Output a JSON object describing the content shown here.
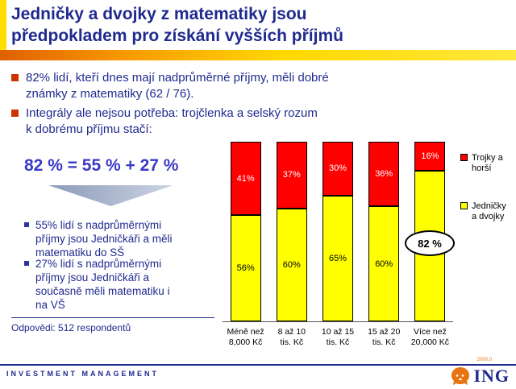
{
  "accent_colors": {
    "navy": "#202A8E",
    "orange": "#E06000",
    "yellow": "#FFDE00",
    "equation_blue": "#3A3AC8",
    "bullet_red": "#CC3300"
  },
  "title": "Jedničky a dvojky z matematiky jsou\npředpokladem pro získání vyšších příjmů",
  "bullets": [
    "82% lidí, kteří dnes mají nadprůměrné příjmy, měli dobré\nznámky z matematiky (62 / 76).",
    "Integrály ale nejsou potřeba: trojčlenka a selský rozum\nk dobrému příjmu stačí:"
  ],
  "equation": "82 % = 55 % + 27 %",
  "sub_bullets": [
    "55% lidí s nadprůměrnými\npříjmy jsou Jedničkáři a měli\nmatematiku do SŠ",
    "27% lidí s nadprůměrnými\npříjmy jsou Jedničkáři a\nsoučasně měli matematiku i\nna VŠ"
  ],
  "footnote": "Odpovědi: 512 respondentů",
  "chart_data": {
    "type": "bar",
    "stacked": true,
    "unit": "%",
    "ylim": [
      0,
      100
    ],
    "grid": false,
    "legend_position": "right",
    "categories": [
      "Méně než\n8,000 Kč",
      "8 až 10\ntis. Kč",
      "10 až 15\ntis. Kč",
      "15 až 20\ntis. Kč",
      "Více než\n20,000 Kč"
    ],
    "series": [
      {
        "name": "Trojky a horší",
        "legend_label": "Trojky a\nhorší",
        "color": "#FF0000",
        "label_color": "#FFFFFF",
        "values": [
          41,
          37,
          30,
          36,
          16
        ],
        "labels": [
          "41%",
          "37%",
          "30%",
          "36%",
          "16%"
        ]
      },
      {
        "name": "Jedničky a dvojky",
        "legend_label": "Jedničky\na dvojky",
        "color": "#FFFF00",
        "label_color": "#000000",
        "values": [
          56,
          60,
          65,
          60,
          82
        ],
        "labels": [
          "56%",
          "60%",
          "65%",
          "60%",
          ""
        ]
      }
    ],
    "callout": "82 %"
  },
  "footer": {
    "left": "INVESTMENT MANAGEMENT",
    "logo_text": "ING",
    "stamp": "2000,0"
  }
}
